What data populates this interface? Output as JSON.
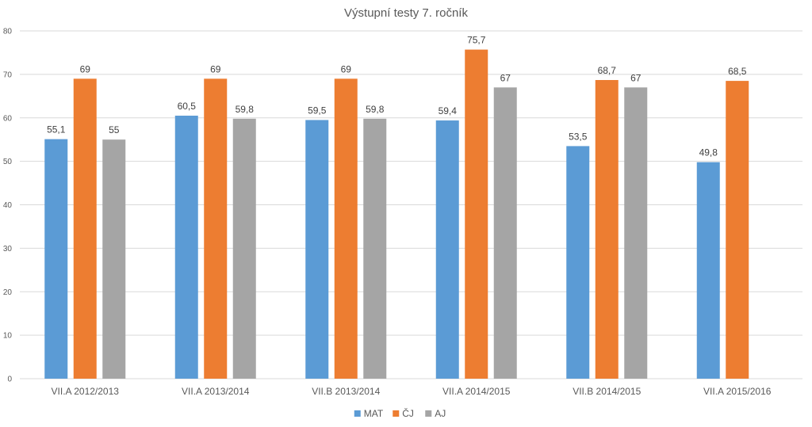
{
  "chart_data": {
    "type": "bar",
    "title": "Výstupní testy 7. ročník",
    "categories": [
      "VII.A 2012/2013",
      "VII.A 2013/2014",
      "VII.B 2013/2014",
      "VII.A 2014/2015",
      "VII.B 2014/2015",
      "VII.A 2015/2016"
    ],
    "series": [
      {
        "name": "MAT",
        "color": "#5B9BD5",
        "values": [
          55.1,
          60.5,
          59.5,
          59.4,
          53.5,
          49.8
        ],
        "labels": [
          "55,1",
          "60,5",
          "59,5",
          "59,4",
          "53,5",
          "49,8"
        ]
      },
      {
        "name": "ČJ",
        "color": "#ED7D31",
        "values": [
          69,
          69,
          69,
          75.7,
          68.7,
          68.5
        ],
        "labels": [
          "69",
          "69",
          "69",
          "75,7",
          "68,7",
          "68,5"
        ]
      },
      {
        "name": "AJ",
        "color": "#A5A5A5",
        "values": [
          55,
          59.8,
          59.8,
          67,
          67,
          null
        ],
        "labels": [
          "55",
          "59,8",
          "59,8",
          "67",
          "67",
          ""
        ]
      }
    ],
    "yticks": [
      "0",
      "10",
      "20",
      "30",
      "40",
      "50",
      "60",
      "70",
      "80"
    ],
    "ylim": [
      0,
      80
    ],
    "grid": true,
    "legend": "bottom",
    "xlabel": "",
    "ylabel": ""
  }
}
